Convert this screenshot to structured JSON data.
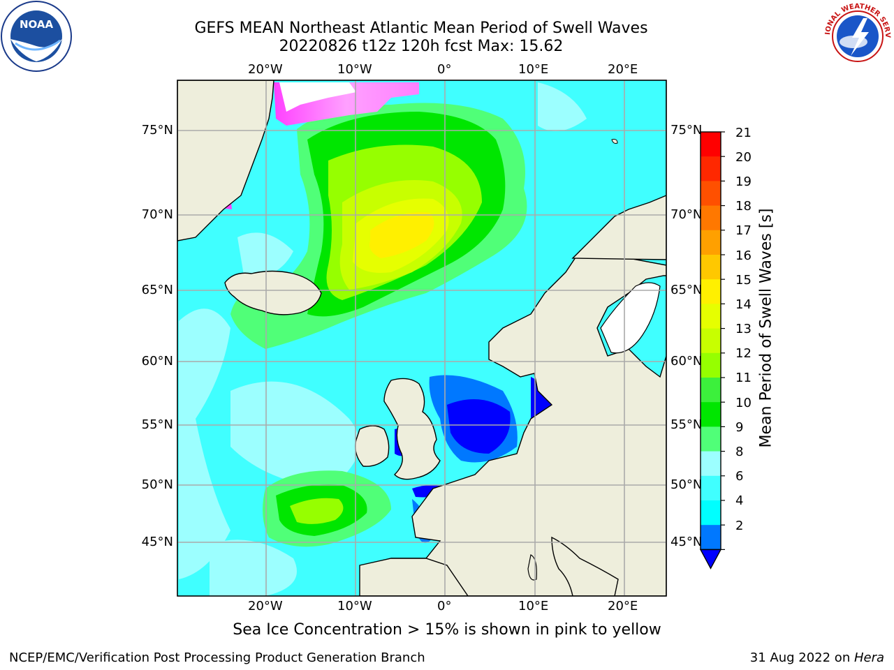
{
  "header": {
    "title_line1": "GEFS MEAN Northeast Atlantic Mean Period of Swell Waves",
    "title_line2": "20220826 t12z 120h fcst   Max: 15.62"
  },
  "logos": {
    "left": "NOAA",
    "left_ring_text": "NATIONAL OCEANIC AND ATMOSPHERIC ADMINISTRATION · U.S. DEPARTMENT OF COMMERCE",
    "right_ring_text": "NATIONAL WEATHER SERVICE"
  },
  "map": {
    "lon_labels": [
      "20°W",
      "10°W",
      "0°",
      "10°E",
      "20°E"
    ],
    "lat_labels": [
      "75°N",
      "70°N",
      "65°N",
      "60°N",
      "55°N",
      "50°N",
      "45°N"
    ],
    "extent": {
      "lon": [
        -29.5,
        24.5
      ],
      "lat": [
        41,
        78
      ]
    },
    "ocean_base_color": "#40ffff",
    "land_color": "#eeeedc"
  },
  "colorbar": {
    "title": "Mean Period of Swell Waves [s]",
    "ticks": [
      "21",
      "20",
      "19",
      "18",
      "17",
      "16",
      "15",
      "14",
      "13",
      "12",
      "11",
      "10",
      "9",
      "8",
      "6",
      "4",
      "2"
    ],
    "colors": [
      "#ff0000",
      "#ff2800",
      "#ff5000",
      "#ff7800",
      "#ffa000",
      "#ffc800",
      "#fff000",
      "#e6ff00",
      "#c8ff00",
      "#96ff00",
      "#3cf03c",
      "#00e600",
      "#50ff78",
      "#9cffff",
      "#40ffff",
      "#00ffff",
      "#0078ff",
      "#0000ff"
    ]
  },
  "notes": {
    "ice": "Sea Ice Concentration > 15% is shown in pink to yellow"
  },
  "footer": {
    "left": "NCEP/EMC/Verification Post Processing Product Generation Branch",
    "date": "31 Aug 2022 on ",
    "machine": "Hera"
  }
}
